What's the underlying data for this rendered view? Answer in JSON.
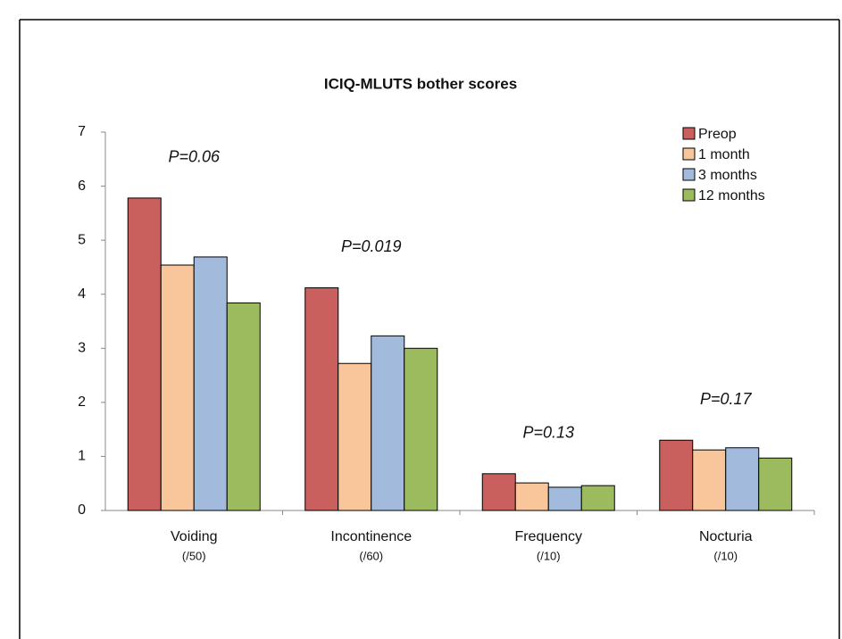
{
  "chart_data": {
    "type": "bar",
    "title": "ICIQ-MLUTS bother scores",
    "categories": [
      "Voiding",
      "Incontinence",
      "Frequency",
      "Nocturia"
    ],
    "category_sublabels": [
      "(/50)",
      "(/60)",
      "(/10)",
      "(/10)"
    ],
    "annotations": [
      "P=0.06",
      "P=0.019",
      "P=0.13",
      "P=0.17"
    ],
    "series": [
      {
        "name": "Preop",
        "color": "#c9605e",
        "values": [
          5.78,
          4.12,
          0.68,
          1.3
        ]
      },
      {
        "name": "1 month",
        "color": "#f9c59a",
        "values": [
          4.54,
          2.72,
          0.51,
          1.12
        ]
      },
      {
        "name": "3 months",
        "color": "#a2bbdc",
        "values": [
          4.69,
          3.23,
          0.43,
          1.16
        ]
      },
      {
        "name": "12 months",
        "color": "#9cbb5e",
        "values": [
          3.84,
          3.0,
          0.46,
          0.97
        ]
      }
    ],
    "ylim": [
      0,
      7
    ],
    "yticks": [
      0,
      1,
      2,
      3,
      4,
      5,
      6,
      7
    ],
    "legend": "top-right"
  }
}
